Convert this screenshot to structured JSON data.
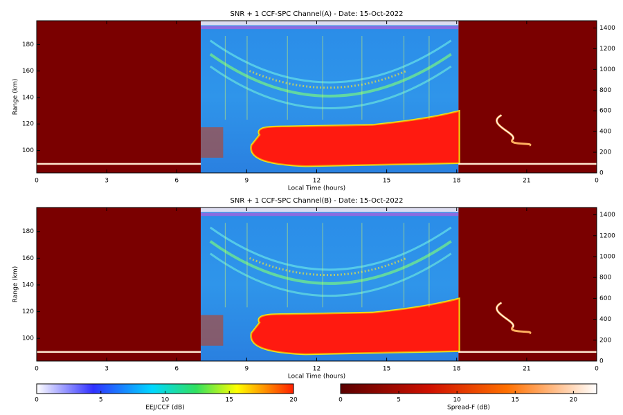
{
  "chart_data": [
    {
      "type": "heatmap",
      "title": "SNR + 1 CCF-SPC Channel(A) - Date: 15-Oct-2022",
      "xlabel": "Local Time (hours)",
      "ylabel": "Range (km)",
      "xlim": [
        0,
        24
      ],
      "xticks": [
        0,
        3,
        6,
        9,
        12,
        15,
        18,
        21,
        {
          "value": 24,
          "label": "0"
        }
      ],
      "ylim": [
        83,
        198
      ],
      "yticks": [
        100,
        120,
        140,
        160,
        180
      ],
      "y2lim": [
        0,
        1470
      ],
      "y2ticks": [
        0,
        200,
        400,
        600,
        800,
        1000,
        1200,
        1400
      ]
    },
    {
      "type": "heatmap",
      "title": "SNR + 1 CCF-SPC Channel(B) - Date: 15-Oct-2022",
      "xlabel": "Local Time (hours)",
      "ylabel": "Range (km)",
      "xlim": [
        0,
        24
      ],
      "xticks": [
        0,
        3,
        6,
        9,
        12,
        15,
        18,
        21,
        {
          "value": 24,
          "label": "0"
        }
      ],
      "ylim": [
        83,
        198
      ],
      "yticks": [
        100,
        120,
        140,
        160,
        180
      ],
      "y2lim": [
        0,
        1470
      ],
      "y2ticks": [
        0,
        200,
        400,
        600,
        800,
        1000,
        1200,
        1400
      ]
    }
  ],
  "colorbars": [
    {
      "label": "EEJ/CCF (dB)",
      "lim": [
        0,
        20
      ],
      "ticks": [
        0,
        5,
        10,
        15,
        20
      ]
    },
    {
      "label": "Spread-F (dB)",
      "lim": [
        0,
        22
      ],
      "ticks": [
        0,
        5,
        10,
        15,
        20
      ]
    }
  ]
}
